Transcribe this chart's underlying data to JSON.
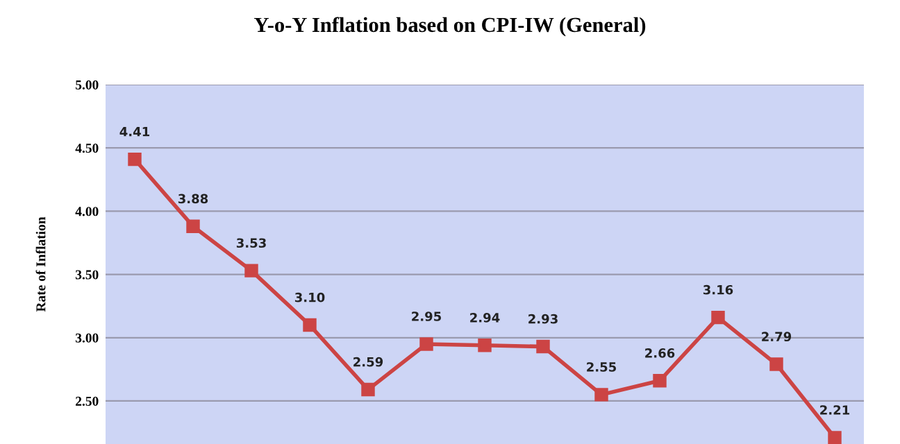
{
  "chart_data": {
    "type": "line",
    "title": "Y-o-Y Inflation based on CPI-IW (General)",
    "ylabel": "Rate of Inflation",
    "categories": [
      null,
      null,
      null,
      null,
      null,
      null,
      null,
      null,
      null,
      null,
      null,
      null,
      null
    ],
    "series": [
      {
        "color": "#cc4444",
        "values": [
          4.41,
          3.88,
          3.53,
          3.1,
          2.59,
          2.95,
          2.94,
          2.93,
          2.55,
          2.66,
          3.16,
          2.79,
          2.21
        ]
      }
    ],
    "value_labels": [
      "4.41",
      "3.88",
      "3.53",
      "3.10",
      "2.59",
      "2.95",
      "2.94",
      "2.93",
      "2.55",
      "2.66",
      "3.16",
      "2.79",
      "2.21"
    ],
    "ylim": [
      2.16,
      5.0
    ],
    "yticks": [
      {
        "value": 2.5,
        "label": "2.50"
      },
      {
        "value": 3.0,
        "label": "3.00"
      },
      {
        "value": 3.5,
        "label": "3.50"
      },
      {
        "value": 4.0,
        "label": "4.00"
      },
      {
        "value": 4.5,
        "label": "4.50"
      },
      {
        "value": 5.0,
        "label": "5.00"
      }
    ],
    "grid": "y",
    "marker": "square",
    "line_style": "solid",
    "tick_labels": "y"
  }
}
